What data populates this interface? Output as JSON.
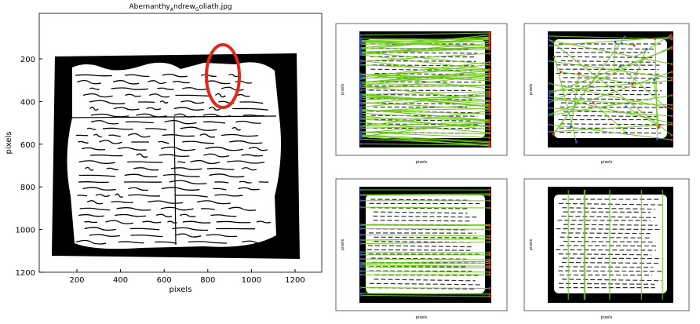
{
  "main_plot": {
    "title_parts": [
      "Abernanthy",
      "A",
      "ndrew",
      "G",
      "oliath.jpg"
    ],
    "xlabel": "pixels",
    "ylabel": "pixels",
    "xticks": [
      200,
      400,
      600,
      800,
      1000,
      1200
    ],
    "yticks": [
      200,
      400,
      600,
      800,
      1000,
      1200
    ]
  },
  "panels": [
    {
      "xlabel": "pixels",
      "ylabel": "pixels"
    },
    {
      "xlabel": "pixels",
      "ylabel": "pixels"
    },
    {
      "xlabel": "pixels",
      "ylabel": "pixels"
    },
    {
      "xlabel": "pixels",
      "ylabel": "pixels"
    }
  ]
}
